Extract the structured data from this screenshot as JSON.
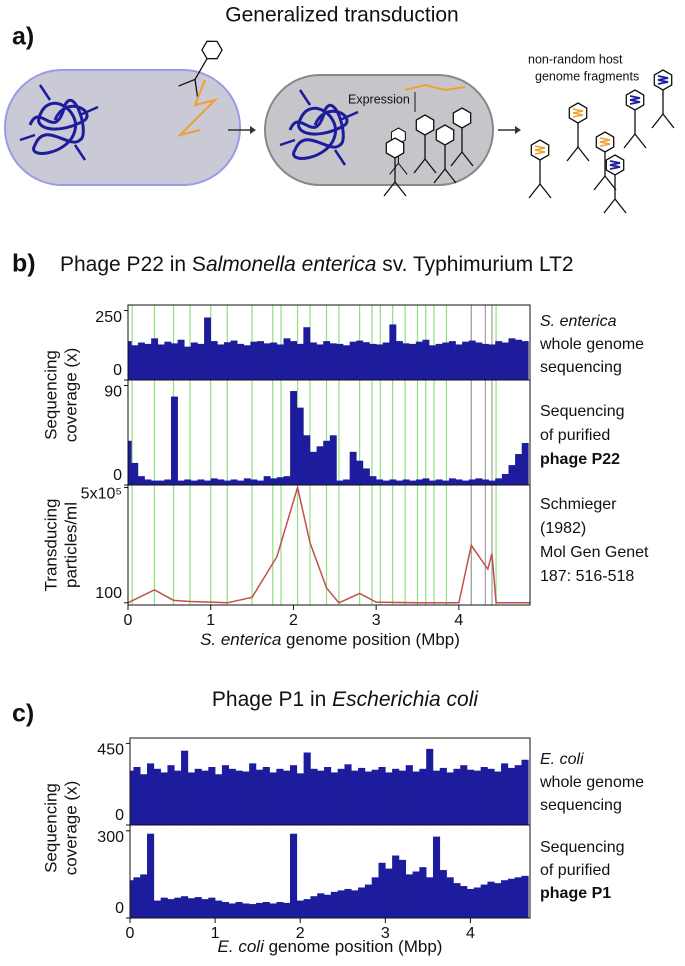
{
  "panel_a": {
    "label": "a)",
    "title": "Generalized transduction",
    "expression": "Expression",
    "fragments": [
      "non-random host",
      "genome fragments"
    ]
  },
  "chart_data": [
    {
      "type": "area",
      "panel_label": "b)",
      "title": [
        "Phage P22 in S",
        "almonella enterica",
        " sv. Typhimurium LT2"
      ],
      "ylabel": [
        "Sequencing",
        "coverage (x)"
      ],
      "annotation": [
        "S. enterica",
        "whole genome",
        "sequencing"
      ],
      "color": "#1c1c9c",
      "xlim": [
        0,
        4.86
      ],
      "ylim": [
        0,
        270
      ],
      "yticks": [
        0,
        250
      ],
      "markers": [
        {
          "color": "#8fe07f",
          "x": [
            0.05,
            0.32,
            0.55,
            0.75,
            1.0,
            1.2,
            1.5,
            1.75,
            1.85,
            2.05,
            2.2,
            2.4,
            2.55,
            2.8,
            2.95,
            3.05,
            3.2,
            3.35,
            3.5,
            3.6,
            3.7,
            3.85,
            4.15,
            4.45
          ]
        },
        {
          "color": "#a0a0a0",
          "x": [
            4.15,
            4.32,
            4.4
          ]
        }
      ],
      "x": [
        0,
        0.08,
        0.16,
        0.24,
        0.32,
        0.4,
        0.48,
        0.56,
        0.64,
        0.72,
        0.8,
        0.88,
        0.96,
        1.04,
        1.12,
        1.2,
        1.28,
        1.36,
        1.44,
        1.52,
        1.6,
        1.68,
        1.76,
        1.84,
        1.92,
        2.0,
        2.08,
        2.16,
        2.24,
        2.32,
        2.4,
        2.48,
        2.56,
        2.64,
        2.72,
        2.8,
        2.88,
        2.96,
        3.04,
        3.12,
        3.2,
        3.28,
        3.36,
        3.44,
        3.52,
        3.6,
        3.68,
        3.76,
        3.84,
        3.92,
        4.0,
        4.08,
        4.16,
        4.24,
        4.32,
        4.4,
        4.48,
        4.56,
        4.64,
        4.72,
        4.8
      ],
      "values": [
        140,
        125,
        135,
        130,
        150,
        128,
        138,
        132,
        145,
        120,
        135,
        130,
        225,
        140,
        128,
        136,
        142,
        130,
        125,
        138,
        140,
        132,
        135,
        128,
        150,
        140,
        130,
        190,
        135,
        128,
        140,
        132,
        130,
        125,
        138,
        142,
        136,
        130,
        128,
        135,
        200,
        140,
        132,
        130,
        138,
        145,
        125,
        130,
        135,
        140,
        128,
        138,
        142,
        135,
        130,
        128,
        140,
        135,
        150,
        145,
        140
      ]
    },
    {
      "type": "area",
      "annotation": [
        "Sequencing",
        "of purified",
        "phage P22"
      ],
      "color": "#1c1c9c",
      "xlim": [
        0,
        4.86
      ],
      "ylim": [
        0,
        95
      ],
      "yticks": [
        0,
        90
      ],
      "markers": [
        {
          "color": "#8fe07f",
          "x": [
            0.05,
            0.32,
            0.55,
            0.75,
            1.0,
            1.2,
            1.5,
            1.75,
            1.85,
            2.05,
            2.2,
            2.4,
            2.55,
            2.8,
            2.95,
            3.05,
            3.2,
            3.35,
            3.5,
            3.6,
            3.7,
            3.85,
            4.15,
            4.45
          ]
        },
        {
          "color": "#a0a0a0",
          "x": [
            4.15,
            4.32,
            4.4
          ]
        }
      ],
      "x": [
        0,
        0.08,
        0.16,
        0.24,
        0.32,
        0.4,
        0.48,
        0.56,
        0.64,
        0.72,
        0.8,
        0.88,
        0.96,
        1.04,
        1.12,
        1.2,
        1.28,
        1.36,
        1.44,
        1.52,
        1.6,
        1.68,
        1.76,
        1.84,
        1.92,
        2.0,
        2.08,
        2.16,
        2.24,
        2.32,
        2.4,
        2.48,
        2.56,
        2.64,
        2.72,
        2.8,
        2.88,
        2.96,
        3.04,
        3.12,
        3.2,
        3.28,
        3.36,
        3.44,
        3.52,
        3.6,
        3.68,
        3.76,
        3.84,
        3.92,
        4.0,
        4.08,
        4.16,
        4.24,
        4.32,
        4.4,
        4.48,
        4.56,
        4.64,
        4.72,
        4.8
      ],
      "values": [
        40,
        20,
        8,
        5,
        4,
        4,
        5,
        80,
        4,
        5,
        4,
        5,
        4,
        6,
        5,
        4,
        5,
        4,
        6,
        5,
        4,
        8,
        6,
        7,
        8,
        85,
        70,
        45,
        30,
        35,
        40,
        45,
        4,
        5,
        30,
        22,
        15,
        8,
        5,
        4,
        5,
        4,
        5,
        4,
        5,
        6,
        4,
        5,
        4,
        6,
        5,
        4,
        5,
        6,
        5,
        4,
        6,
        10,
        18,
        28,
        38
      ]
    },
    {
      "type": "line",
      "log": true,
      "ylabel": [
        "Transducing",
        "particles/ml"
      ],
      "annotation": [
        "Schmieger",
        "(1982)",
        "Mol Gen Genet",
        "187: 516-518"
      ],
      "xlabel": [
        "S. enterica",
        " genome position (Mbp)"
      ],
      "color": "#c0504d",
      "xlim": [
        0,
        4.86
      ],
      "ylim": [
        85,
        600000
      ],
      "yticks": [
        {
          "value": 500000,
          "label": "5x10⁵"
        },
        100
      ],
      "xticks": [
        0,
        1,
        2,
        3,
        4
      ],
      "markers": [
        {
          "color": "#8fe07f",
          "x": [
            0.05,
            0.32,
            0.55,
            0.75,
            1.0,
            1.2,
            1.5,
            1.75,
            1.85,
            2.05,
            2.2,
            2.4,
            2.55,
            2.8,
            2.95,
            3.05,
            3.2,
            3.35,
            3.5,
            3.6,
            3.7,
            3.85,
            4.15,
            4.45
          ]
        },
        {
          "color": "#a0a0a0",
          "x": [
            4.15,
            4.32,
            4.4
          ]
        }
      ],
      "x": [
        0,
        0.32,
        0.55,
        0.75,
        1.0,
        1.2,
        1.5,
        1.8,
        2.05,
        2.2,
        2.4,
        2.55,
        2.8,
        3.0,
        3.5,
        4.0,
        4.15,
        4.35,
        4.4,
        4.45,
        4.86
      ],
      "values": [
        100,
        260,
        120,
        110,
        105,
        100,
        150,
        3000,
        500000,
        8500,
        300,
        100,
        200,
        105,
        100,
        100,
        7000,
        1200,
        3800,
        100,
        100
      ]
    },
    {
      "type": "area",
      "panel_label": "c)",
      "title": [
        "Phage P1 in ",
        "Escherichia coli"
      ],
      "ylabel": [
        "Sequencing",
        "coverage (x)"
      ],
      "annotation": [
        "E. coli",
        "whole genome",
        "sequencing"
      ],
      "color": "#1c1c9c",
      "xlim": [
        0,
        4.7
      ],
      "ylim": [
        0,
        480
      ],
      "yticks": [
        0,
        450
      ],
      "x": [
        0,
        0.08,
        0.16,
        0.24,
        0.32,
        0.4,
        0.48,
        0.56,
        0.64,
        0.72,
        0.8,
        0.88,
        0.96,
        1.04,
        1.12,
        1.2,
        1.28,
        1.36,
        1.44,
        1.52,
        1.6,
        1.68,
        1.76,
        1.84,
        1.92,
        2.0,
        2.08,
        2.16,
        2.24,
        2.32,
        2.4,
        2.48,
        2.56,
        2.64,
        2.72,
        2.8,
        2.88,
        2.96,
        3.04,
        3.12,
        3.2,
        3.28,
        3.36,
        3.44,
        3.52,
        3.6,
        3.68,
        3.76,
        3.84,
        3.92,
        4.0,
        4.08,
        4.16,
        4.24,
        4.32,
        4.4,
        4.48,
        4.56,
        4.64
      ],
      "values": [
        300,
        320,
        280,
        340,
        310,
        290,
        330,
        300,
        410,
        290,
        310,
        300,
        320,
        280,
        330,
        310,
        300,
        295,
        340,
        305,
        320,
        290,
        310,
        300,
        330,
        285,
        400,
        310,
        300,
        320,
        290,
        310,
        335,
        300,
        315,
        295,
        305,
        320,
        290,
        310,
        300,
        330,
        295,
        310,
        420,
        300,
        315,
        290,
        310,
        330,
        305,
        300,
        320,
        310,
        295,
        340,
        315,
        330,
        360
      ]
    },
    {
      "type": "area",
      "annotation": [
        "Sequencing",
        "of purified",
        "phage P1"
      ],
      "xlabel": [
        "E. coli",
        " genome position (Mbp)"
      ],
      "color": "#1c1c9c",
      "xlim": [
        0,
        4.7
      ],
      "ylim": [
        0,
        320
      ],
      "yticks": [
        0,
        300
      ],
      "xticks": [
        0,
        1,
        2,
        3,
        4
      ],
      "x": [
        0,
        0.08,
        0.16,
        0.24,
        0.32,
        0.4,
        0.48,
        0.56,
        0.64,
        0.72,
        0.8,
        0.88,
        0.96,
        1.04,
        1.12,
        1.2,
        1.28,
        1.36,
        1.44,
        1.52,
        1.6,
        1.68,
        1.76,
        1.84,
        1.92,
        2.0,
        2.08,
        2.16,
        2.24,
        2.32,
        2.4,
        2.48,
        2.56,
        2.64,
        2.72,
        2.8,
        2.88,
        2.96,
        3.04,
        3.12,
        3.2,
        3.28,
        3.36,
        3.44,
        3.52,
        3.6,
        3.68,
        3.76,
        3.84,
        3.92,
        4.0,
        4.08,
        4.16,
        4.24,
        4.32,
        4.4,
        4.48,
        4.56,
        4.64
      ],
      "values": [
        130,
        140,
        150,
        290,
        60,
        70,
        65,
        70,
        75,
        68,
        72,
        65,
        70,
        60,
        55,
        50,
        55,
        50,
        48,
        52,
        55,
        50,
        55,
        52,
        290,
        60,
        65,
        75,
        85,
        80,
        90,
        95,
        100,
        95,
        105,
        115,
        140,
        190,
        170,
        215,
        200,
        150,
        160,
        175,
        140,
        280,
        165,
        140,
        120,
        110,
        100,
        105,
        115,
        125,
        120,
        130,
        135,
        140,
        145
      ]
    }
  ]
}
